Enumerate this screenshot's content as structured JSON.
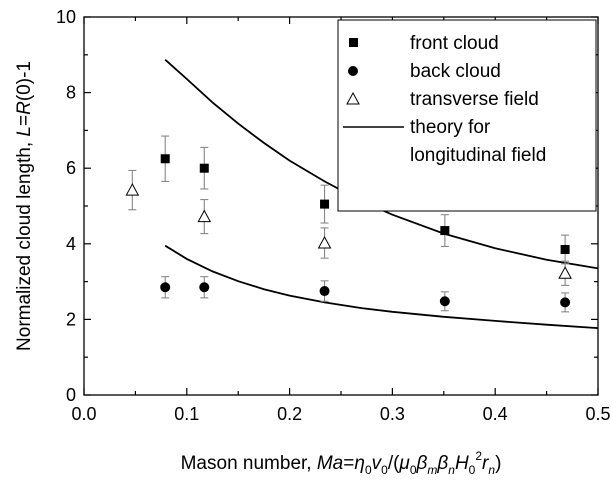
{
  "chart_data": {
    "type": "scatter",
    "xlim": [
      0.0,
      0.5
    ],
    "ylim": [
      0,
      10
    ],
    "x_ticks": [
      "0.0",
      "0.1",
      "0.2",
      "0.3",
      "0.4",
      "0.5"
    ],
    "y_ticks": [
      "0",
      "2",
      "4",
      "6",
      "8",
      "10"
    ],
    "xlabel": {
      "prefix": "Mason number, ",
      "math": "Ma=η0v0/(μ0βmβnH02rn)"
    },
    "ylabel": {
      "prefix": "Normalized cloud length, ",
      "math": "L=R(0)-1"
    },
    "grid": false,
    "legend_position": "top-right",
    "series": [
      {
        "name": "front cloud",
        "marker": "filled-square",
        "x": [
          0.079,
          0.117,
          0.234,
          0.351,
          0.468
        ],
        "y": [
          6.25,
          6.0,
          5.05,
          4.35,
          3.85
        ],
        "err": [
          0.6,
          0.55,
          0.5,
          0.42,
          0.38
        ]
      },
      {
        "name": "back cloud",
        "marker": "filled-circle",
        "x": [
          0.079,
          0.117,
          0.234,
          0.351,
          0.468
        ],
        "y": [
          2.85,
          2.85,
          2.75,
          2.48,
          2.45
        ],
        "err": [
          0.28,
          0.28,
          0.27,
          0.25,
          0.25
        ]
      },
      {
        "name": "transverse field",
        "marker": "open-triangle",
        "x": [
          0.047,
          0.117,
          0.234,
          0.468
        ],
        "y": [
          5.42,
          4.72,
          4.02,
          3.22
        ],
        "err": [
          0.52,
          0.45,
          0.4,
          0.32
        ]
      },
      {
        "name": "theory for longitudinal field",
        "marker": "line",
        "curves": [
          {
            "x": [
              0.079,
              0.1,
              0.125,
              0.15,
              0.175,
              0.2,
              0.234,
              0.27,
              0.3,
              0.35,
              0.4,
              0.45,
              0.5
            ],
            "y": [
              8.87,
              8.36,
              7.74,
              7.18,
              6.67,
              6.2,
              5.65,
              5.13,
              4.77,
              4.27,
              3.88,
              3.58,
              3.35
            ]
          },
          {
            "x": [
              0.079,
              0.1,
              0.125,
              0.15,
              0.175,
              0.2,
              0.234,
              0.27,
              0.3,
              0.35,
              0.4,
              0.45,
              0.5
            ],
            "y": [
              3.95,
              3.6,
              3.27,
              3.01,
              2.8,
              2.63,
              2.45,
              2.3,
              2.2,
              2.07,
              1.96,
              1.86,
              1.77
            ]
          }
        ]
      }
    ],
    "colors": {
      "marks": "#000000",
      "errorbars": "#888888",
      "background": "#ffffff"
    }
  }
}
